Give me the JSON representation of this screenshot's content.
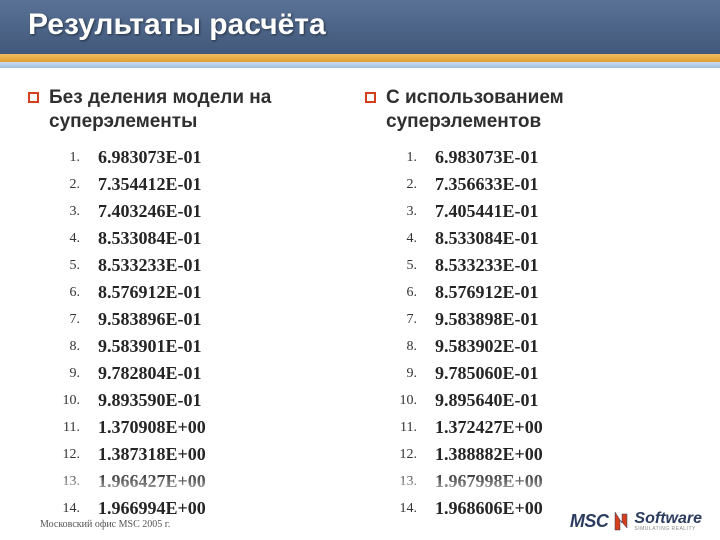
{
  "header": {
    "title": "Результаты расчёта",
    "bg_color": "#4a6186",
    "stripe1_color": "#e8ac45",
    "stripe2_color": "#b4cdea"
  },
  "columns": {
    "left": {
      "heading": "Без деления модели на суперэлементы",
      "bullet_color": "#d4401e",
      "values": [
        "6.983073E-01",
        "7.354412E-01",
        "7.403246E-01",
        "8.533084E-01",
        "8.533233E-01",
        "8.576912E-01",
        "9.583896E-01",
        "9.583901E-01",
        "9.782804E-01",
        "9.893590E-01",
        "1.370908E+00",
        "1.387318E+00",
        "1.966427E+00",
        "1.966994E+00"
      ]
    },
    "right": {
      "heading": "С использованием суперэлементов",
      "bullet_color": "#d4401e",
      "values": [
        "6.983073E-01",
        "7.356633E-01",
        "7.405441E-01",
        "8.533084E-01",
        "8.533233E-01",
        "8.576912E-01",
        "9.583898E-01",
        "9.583902E-01",
        "9.785060E-01",
        "9.895640E-01",
        "1.372427E+00",
        "1.388882E+00",
        "1.967998E+00",
        "1.968606E+00"
      ]
    }
  },
  "footer": {
    "note": "Московский офис MSC 2005 г.",
    "logo_left": "MSC",
    "logo_right": "Software",
    "logo_tag": "SIMULATING REALITY"
  },
  "styling": {
    "value_font": "Times New Roman",
    "value_fontsize": 18,
    "value_weight": "bold",
    "heading_fontsize": 19,
    "background": "#ffffff"
  }
}
